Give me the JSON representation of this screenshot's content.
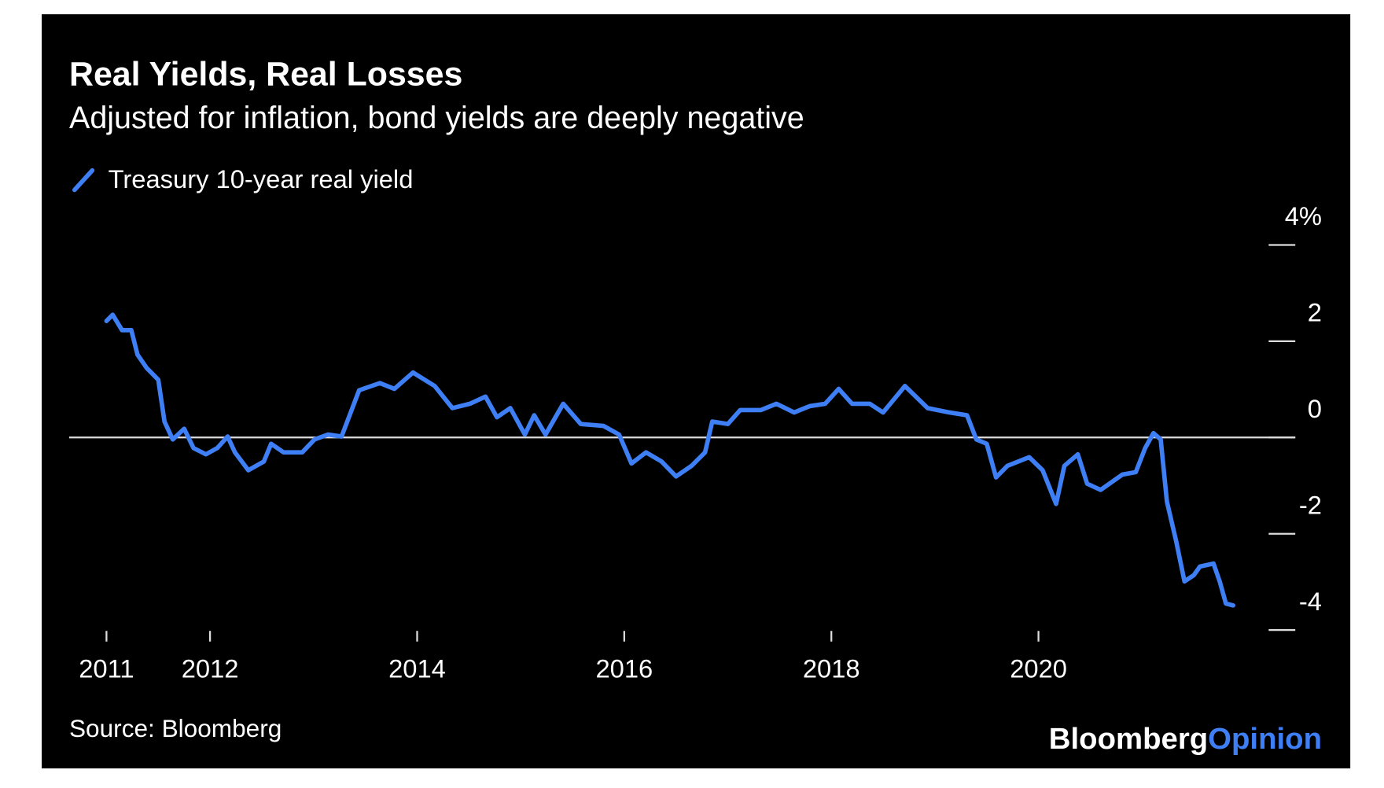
{
  "chart_data": {
    "type": "line",
    "title": "Real Yields, Real Losses",
    "subtitle": "Adjusted for inflation, bond yields are deeply negative",
    "source": "Source: Bloomberg",
    "logo": {
      "text": "Bloomberg",
      "highlight": "Opinion"
    },
    "xlim": [
      2010.64,
      2022.48
    ],
    "xticks": [
      2011,
      2012,
      2014,
      2016,
      2018,
      2020
    ],
    "ylim": [
      -4,
      4
    ],
    "yticks": [
      {
        "value": 4,
        "label": "4%"
      },
      2,
      0,
      -2,
      -4
    ],
    "zero_line": true,
    "legend": "top-left",
    "series": [
      {
        "name": "Treasury 10-year real yield",
        "color": "#3f7ff5",
        "x": [
          2011.0,
          2011.06,
          2011.15,
          2011.24,
          2011.3,
          2011.39,
          2011.5,
          2011.56,
          2011.64,
          2011.75,
          2011.84,
          2011.96,
          2012.07,
          2012.17,
          2012.24,
          2012.37,
          2012.52,
          2012.59,
          2012.71,
          2012.89,
          2013.01,
          2013.14,
          2013.27,
          2013.44,
          2013.64,
          2013.78,
          2013.96,
          2014.17,
          2014.34,
          2014.51,
          2014.66,
          2014.77,
          2014.9,
          2015.04,
          2015.13,
          2015.24,
          2015.41,
          2015.58,
          2015.8,
          2015.95,
          2016.07,
          2016.21,
          2016.36,
          2016.5,
          2016.65,
          2016.78,
          2016.85,
          2017.0,
          2017.12,
          2017.32,
          2017.47,
          2017.64,
          2017.79,
          2017.94,
          2018.07,
          2018.2,
          2018.37,
          2018.5,
          2018.71,
          2018.93,
          2019.14,
          2019.31,
          2019.4,
          2019.5,
          2019.59,
          2019.7,
          2019.91,
          2020.04,
          2020.17,
          2020.25,
          2020.38,
          2020.47,
          2020.6,
          2020.81,
          2020.94,
          2021.03,
          2021.11,
          2021.18,
          2021.24,
          2021.33,
          2021.41,
          2021.5,
          2021.56,
          2021.69,
          2021.75,
          2021.81,
          2021.88
        ],
        "values": [
          2.42,
          2.55,
          2.23,
          2.23,
          1.72,
          1.44,
          1.2,
          0.33,
          -0.04,
          0.18,
          -0.22,
          -0.35,
          -0.22,
          0.02,
          -0.31,
          -0.68,
          -0.5,
          -0.13,
          -0.31,
          -0.31,
          -0.04,
          0.06,
          0.02,
          0.98,
          1.13,
          1.01,
          1.35,
          1.07,
          0.61,
          0.7,
          0.85,
          0.42,
          0.61,
          0.06,
          0.46,
          0.06,
          0.7,
          0.28,
          0.24,
          0.06,
          -0.54,
          -0.31,
          -0.5,
          -0.81,
          -0.59,
          -0.31,
          0.33,
          0.28,
          0.57,
          0.57,
          0.7,
          0.52,
          0.65,
          0.7,
          1.01,
          0.7,
          0.7,
          0.52,
          1.07,
          0.61,
          0.52,
          0.46,
          -0.04,
          -0.13,
          -0.83,
          -0.59,
          -0.41,
          -0.68,
          -1.38,
          -0.59,
          -0.35,
          -0.96,
          -1.09,
          -0.77,
          -0.72,
          -0.22,
          0.09,
          -0.04,
          -1.33,
          -2.16,
          -2.99,
          -2.86,
          -2.68,
          -2.62,
          -2.99,
          -3.45,
          -3.49
        ]
      }
    ]
  }
}
